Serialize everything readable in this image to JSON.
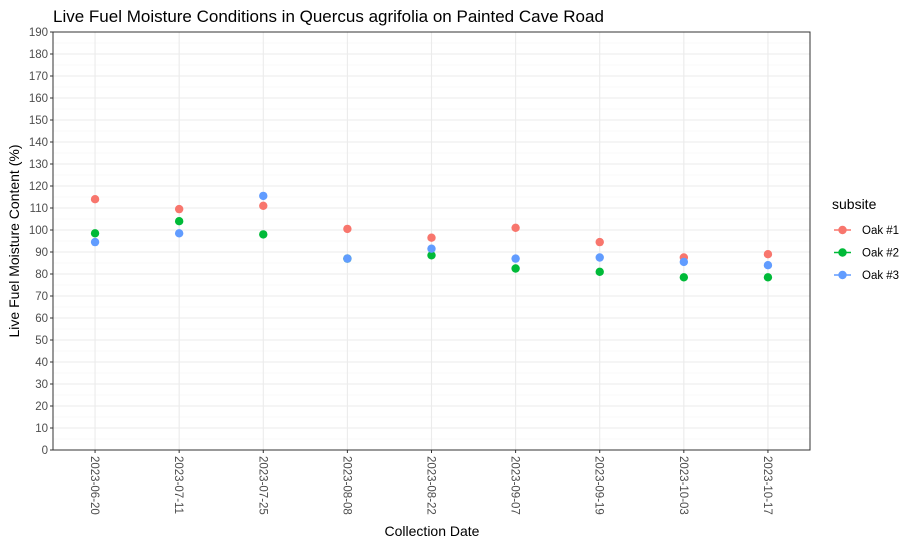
{
  "chart_data": {
    "type": "scatter",
    "title": "Live Fuel Moisture Conditions in Quercus agrifolia on Painted Cave Road",
    "xlabel": "Collection Date",
    "ylabel": "Live Fuel Moisture Content (%)",
    "ylim": [
      0,
      190
    ],
    "y_ticks": [
      0,
      10,
      20,
      30,
      40,
      50,
      60,
      70,
      80,
      90,
      100,
      110,
      120,
      130,
      140,
      150,
      160,
      170,
      180,
      190
    ],
    "categories": [
      "2023-06-20",
      "2023-07-11",
      "2023-07-25",
      "2023-08-08",
      "2023-08-22",
      "2023-09-07",
      "2023-09-19",
      "2023-10-03",
      "2023-10-17"
    ],
    "grid": true,
    "legend": {
      "title": "subsite",
      "position": "right"
    },
    "series": [
      {
        "name": "Oak #1",
        "color": "#F8766D",
        "values": [
          114,
          109.5,
          111,
          100.5,
          96.5,
          101,
          94.5,
          87.5,
          89
        ]
      },
      {
        "name": "Oak #2",
        "color": "#00BA38",
        "values": [
          98.5,
          104,
          98,
          87,
          88.5,
          82.5,
          81,
          78.5,
          78.5
        ]
      },
      {
        "name": "Oak #3",
        "color": "#619CFF",
        "values": [
          94.5,
          98.5,
          115.5,
          87,
          91.5,
          87,
          87.5,
          85.5,
          84
        ]
      }
    ]
  }
}
